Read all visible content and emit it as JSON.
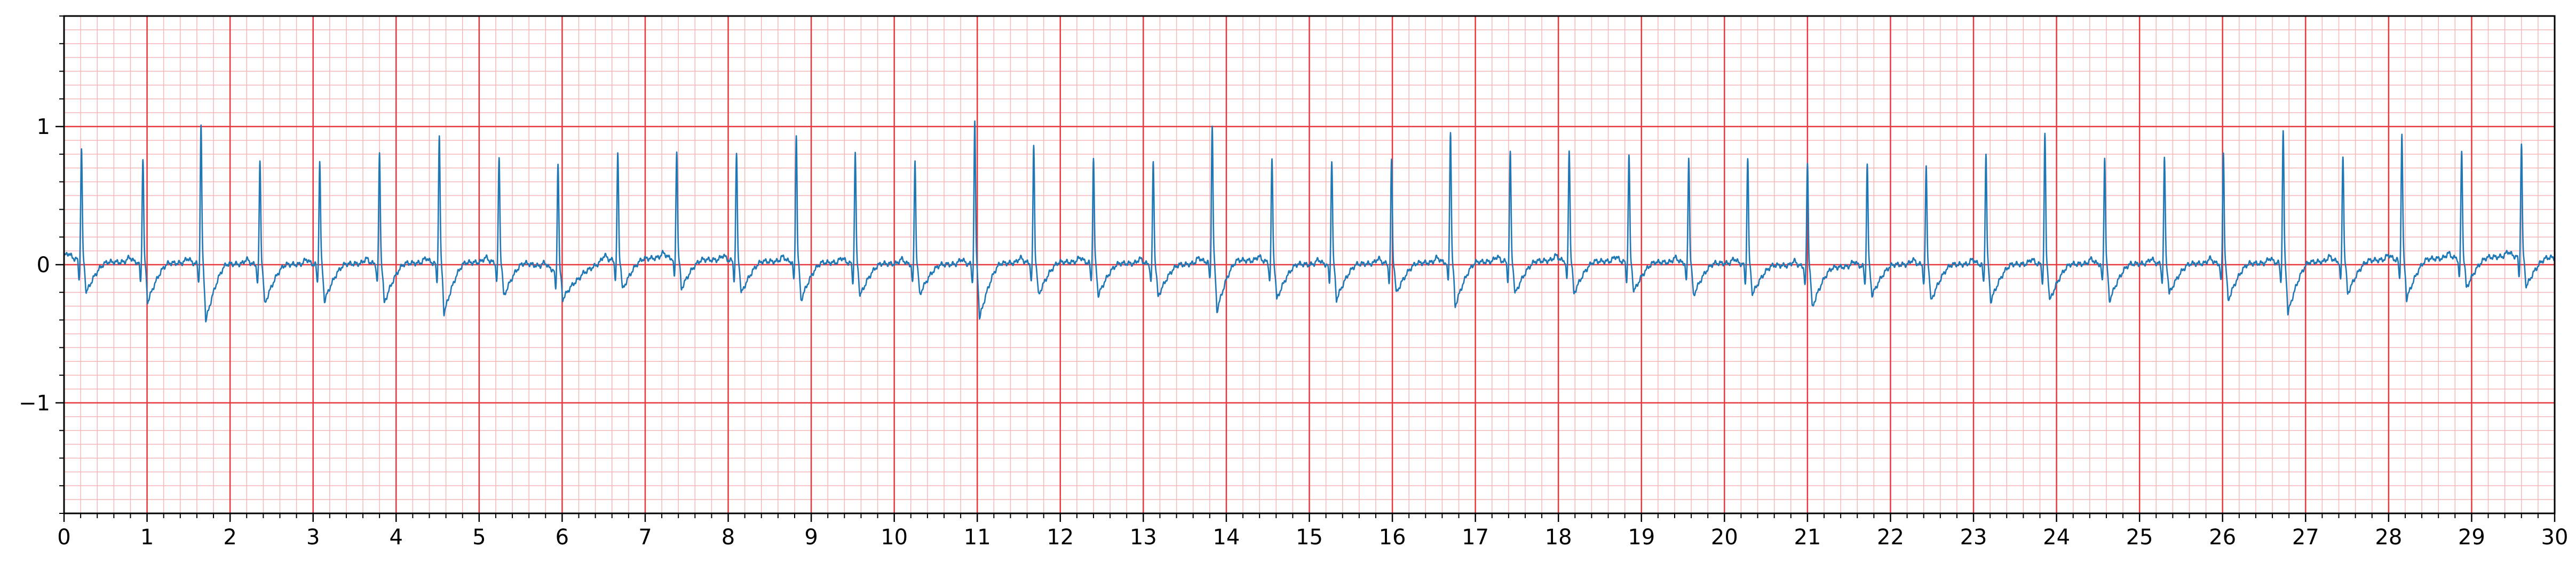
{
  "chart_data": {
    "type": "line",
    "title": "",
    "xlabel": "",
    "ylabel": "",
    "xlim": [
      0,
      30
    ],
    "ylim": [
      -1.8,
      1.8
    ],
    "x_ticks": [
      0,
      1,
      2,
      3,
      4,
      5,
      6,
      7,
      8,
      9,
      10,
      11,
      12,
      13,
      14,
      15,
      16,
      17,
      18,
      19,
      20,
      21,
      22,
      23,
      24,
      25,
      26,
      27,
      28,
      29,
      30
    ],
    "x_tick_labels": [
      "0",
      "1",
      "2",
      "3",
      "4",
      "5",
      "6",
      "7",
      "8",
      "9",
      "10",
      "11",
      "12",
      "13",
      "14",
      "15",
      "16",
      "17",
      "18",
      "19",
      "20",
      "21",
      "22",
      "23",
      "24",
      "25",
      "26",
      "27",
      "28",
      "29",
      "30"
    ],
    "y_ticks": [
      -1,
      0,
      1
    ],
    "y_tick_labels": [
      "−1",
      "0",
      "1"
    ],
    "grid": {
      "major": true,
      "minor": true,
      "major_x_step": 1,
      "minor_x_step": 0.2,
      "major_y_step": 1,
      "minor_y_step": 0.1
    },
    "colors": {
      "line": "#1f77b4",
      "major_grid": "#e8383d",
      "minor_grid": "#f6b6b8",
      "axes": "#000000"
    },
    "series": [
      {
        "r_peaks": [
          {
            "t": 0.21,
            "v": 0.82
          },
          {
            "t": 0.95,
            "v": 0.78
          },
          {
            "t": 1.65,
            "v": 1.01
          },
          {
            "t": 2.36,
            "v": 0.76
          },
          {
            "t": 3.08,
            "v": 0.76
          },
          {
            "t": 3.8,
            "v": 0.82
          },
          {
            "t": 4.52,
            "v": 0.95
          },
          {
            "t": 5.24,
            "v": 0.78
          },
          {
            "t": 5.95,
            "v": 0.81
          },
          {
            "t": 6.67,
            "v": 0.79
          },
          {
            "t": 7.38,
            "v": 0.81
          },
          {
            "t": 8.1,
            "v": 0.79
          },
          {
            "t": 8.82,
            "v": 0.94
          },
          {
            "t": 9.53,
            "v": 0.82
          },
          {
            "t": 10.25,
            "v": 0.77
          },
          {
            "t": 10.97,
            "v": 1.04
          },
          {
            "t": 11.68,
            "v": 0.86
          },
          {
            "t": 12.4,
            "v": 0.77
          },
          {
            "t": 13.12,
            "v": 0.76
          },
          {
            "t": 13.83,
            "v": 1.0
          },
          {
            "t": 14.55,
            "v": 0.76
          },
          {
            "t": 15.27,
            "v": 0.78
          },
          {
            "t": 15.99,
            "v": 0.77
          },
          {
            "t": 16.7,
            "v": 0.98
          },
          {
            "t": 17.42,
            "v": 0.81
          },
          {
            "t": 18.13,
            "v": 0.83
          },
          {
            "t": 18.85,
            "v": 0.79
          },
          {
            "t": 19.57,
            "v": 0.78
          },
          {
            "t": 20.28,
            "v": 0.79
          },
          {
            "t": 21.0,
            "v": 0.76
          },
          {
            "t": 21.72,
            "v": 0.75
          },
          {
            "t": 22.43,
            "v": 0.72
          },
          {
            "t": 23.15,
            "v": 0.82
          },
          {
            "t": 23.86,
            "v": 0.95
          },
          {
            "t": 24.58,
            "v": 0.79
          },
          {
            "t": 25.3,
            "v": 0.78
          },
          {
            "t": 26.01,
            "v": 0.82
          },
          {
            "t": 26.73,
            "v": 0.97
          },
          {
            "t": 27.45,
            "v": 0.79
          },
          {
            "t": 28.16,
            "v": 0.93
          },
          {
            "t": 28.88,
            "v": 0.8
          },
          {
            "t": 29.6,
            "v": 0.84
          }
        ],
        "troughs_after_beat": [
          -0.22,
          -0.27,
          -0.4,
          -0.27,
          -0.25,
          -0.27,
          -0.35,
          -0.23,
          -0.18,
          -0.2,
          -0.2,
          -0.22,
          -0.26,
          -0.22,
          -0.2,
          -0.38,
          -0.22,
          -0.22,
          -0.22,
          -0.35,
          -0.25,
          -0.24,
          -0.2,
          -0.3,
          -0.22,
          -0.22,
          -0.2,
          -0.22,
          -0.2,
          -0.28,
          -0.2,
          -0.25,
          -0.25,
          -0.25,
          -0.25,
          -0.2,
          -0.25,
          -0.35,
          -0.22,
          -0.27,
          -0.2,
          -0.2
        ],
        "baseline": [
          {
            "t": 0,
            "v": 0.05
          },
          {
            "t": 0.5,
            "v": 0.02
          },
          {
            "t": 2.5,
            "v": 0.0
          },
          {
            "t": 5.5,
            "v": 0.02
          },
          {
            "t": 6.2,
            "v": -0.08
          },
          {
            "t": 6.5,
            "v": 0.03
          },
          {
            "t": 7.2,
            "v": 0.05
          },
          {
            "t": 8.0,
            "v": 0.03
          },
          {
            "t": 10.5,
            "v": 0.0
          },
          {
            "t": 12.0,
            "v": 0.02
          },
          {
            "t": 13.5,
            "v": 0.0
          },
          {
            "t": 14.0,
            "v": 0.04
          },
          {
            "t": 15.0,
            "v": 0.0
          },
          {
            "t": 17.0,
            "v": 0.02
          },
          {
            "t": 18.0,
            "v": 0.03
          },
          {
            "t": 20.0,
            "v": 0.01
          },
          {
            "t": 21.3,
            "v": -0.02
          },
          {
            "t": 22.0,
            "v": 0.0
          },
          {
            "t": 26.5,
            "v": 0.01
          },
          {
            "t": 28.3,
            "v": 0.04
          },
          {
            "t": 29.0,
            "v": 0.05
          },
          {
            "t": 29.5,
            "v": 0.06
          },
          {
            "t": 30.0,
            "v": 0.05
          }
        ]
      }
    ]
  }
}
